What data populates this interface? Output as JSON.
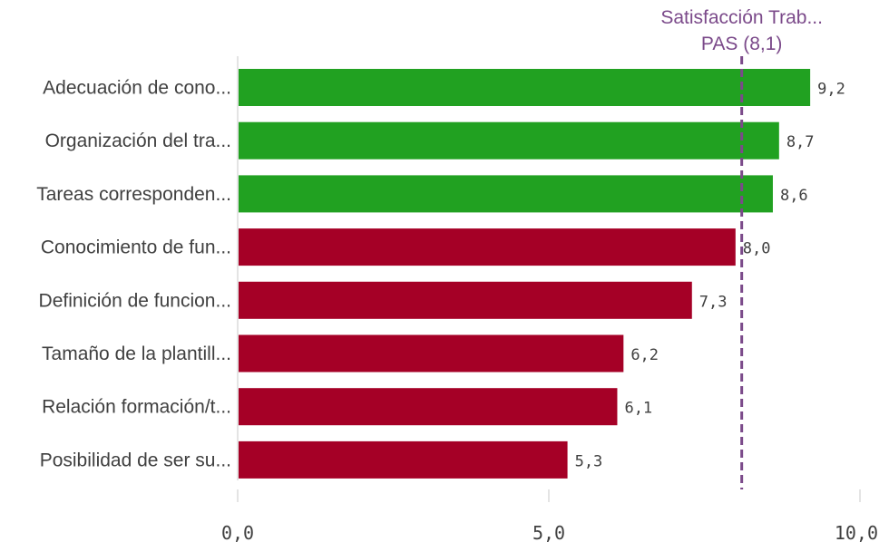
{
  "chart_data": {
    "type": "bar",
    "orientation": "horizontal",
    "categories": [
      "Adecuación de cono...",
      "Organización del tra...",
      "Tareas corresponden...",
      "Conocimiento de fun...",
      "Definición de funcion...",
      "Tamaño de la plantill...",
      "Relación formación/t...",
      "Posibilidad de ser su..."
    ],
    "values": [
      9.2,
      8.7,
      8.6,
      8.0,
      7.3,
      6.2,
      6.1,
      5.3
    ],
    "value_labels": [
      "9,2",
      "8,7",
      "8,6",
      "8,0",
      "7,3",
      "6,2",
      "6,1",
      "5,3"
    ],
    "xlim": [
      0,
      10
    ],
    "x_ticks": [
      0,
      5,
      10
    ],
    "x_tick_labels": [
      "0,0",
      "5,0",
      "10,0"
    ],
    "grid": false,
    "reference_line": {
      "value": 8.1,
      "label_line1": "Satisfacción Trab...",
      "label_line2": "PAS (8,1)"
    },
    "colors": {
      "above_reference": "#21a121",
      "below_reference": "#a50026",
      "reference_line": "#7b4a8a",
      "text": "#404040",
      "axis": "#c8c8c8"
    }
  }
}
